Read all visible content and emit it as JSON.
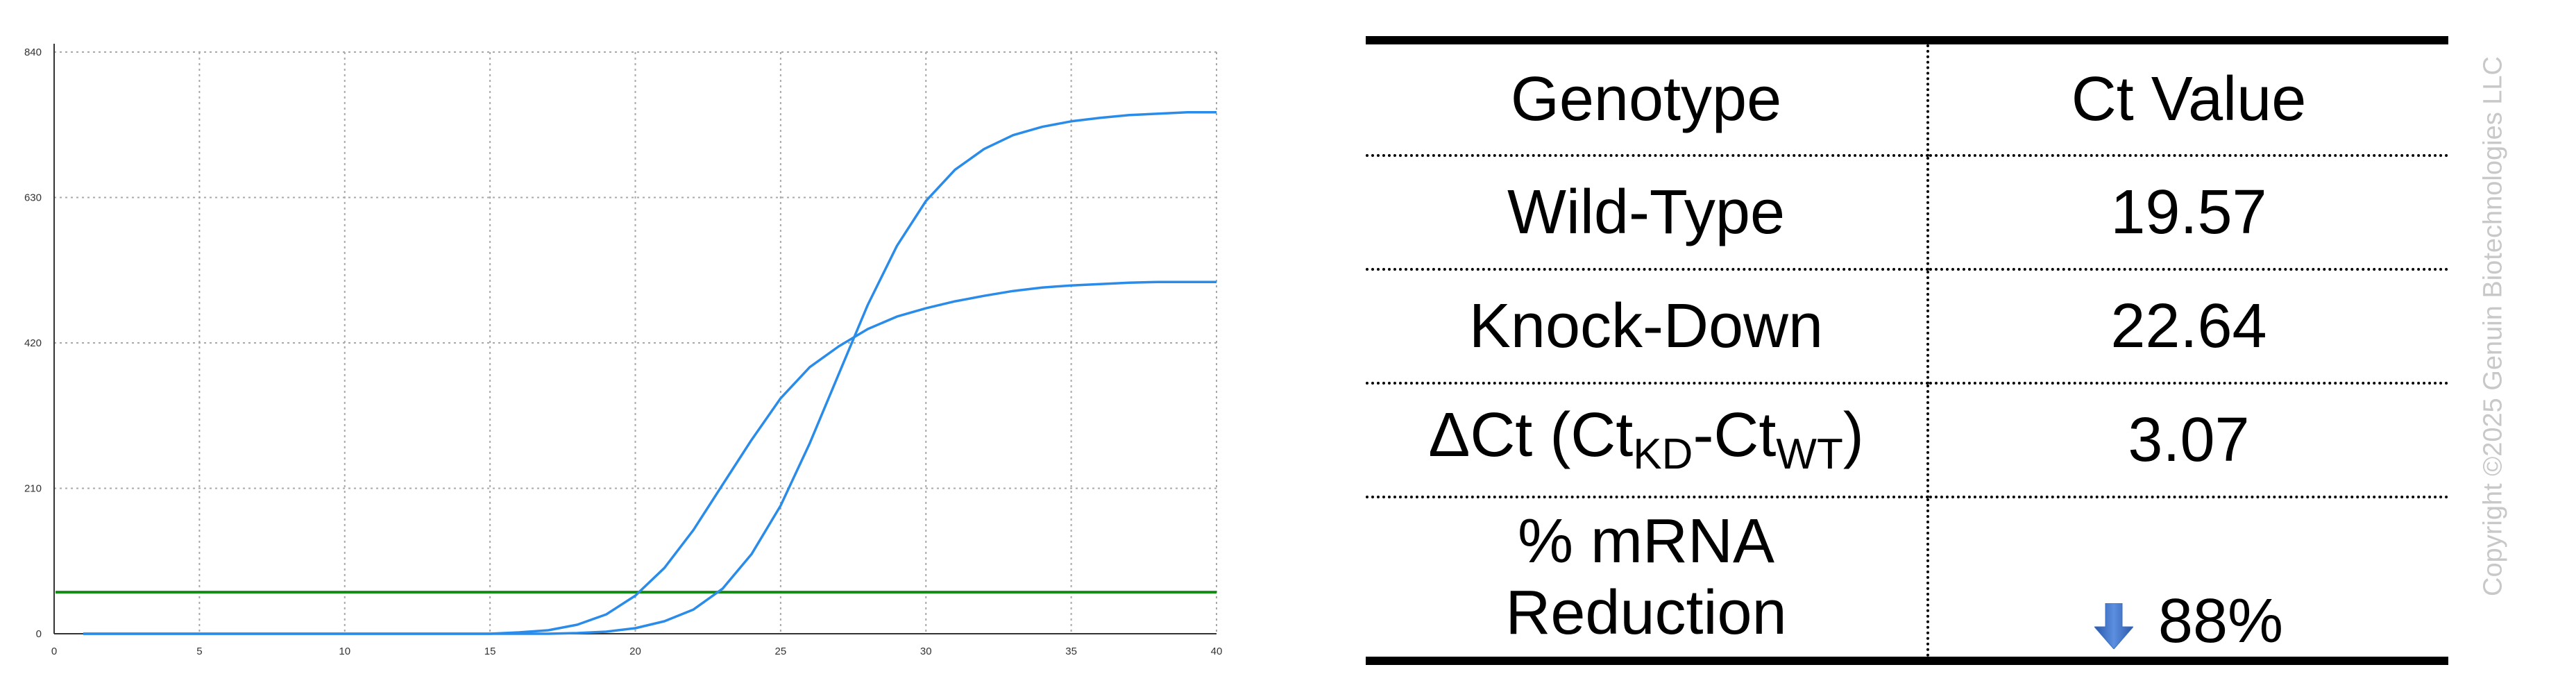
{
  "chart_data": {
    "type": "line",
    "title": "",
    "xlabel": "",
    "ylabel": "",
    "xlim": [
      0,
      40
    ],
    "ylim": [
      0,
      840
    ],
    "x_ticks": [
      "0",
      "5",
      "10",
      "15",
      "20",
      "25",
      "30",
      "35",
      "40"
    ],
    "y_ticks": [
      "0",
      "210",
      "420",
      "630",
      "840"
    ],
    "grid": true,
    "threshold": 60,
    "series": [
      {
        "color": "#2a8ce8",
        "x": [
          1,
          15,
          16,
          17,
          18,
          19,
          20,
          21,
          22,
          23,
          24,
          25,
          26,
          27,
          28,
          29,
          30,
          31,
          32,
          33,
          34,
          35,
          36,
          37,
          38,
          39,
          40
        ],
        "y": [
          0,
          0,
          2,
          5,
          13,
          28,
          55,
          95,
          150,
          215,
          280,
          340,
          385,
          415,
          440,
          458,
          470,
          480,
          488,
          495,
          500,
          503,
          505,
          507,
          508,
          508,
          508
        ]
      },
      {
        "color": "#2a8ce8",
        "x": [
          1,
          17,
          18,
          19,
          20,
          21,
          22,
          23,
          24,
          25,
          26,
          27,
          28,
          29,
          30,
          31,
          32,
          33,
          34,
          35,
          36,
          37,
          38,
          39,
          40
        ],
        "y": [
          0,
          0,
          1,
          3,
          8,
          18,
          35,
          65,
          115,
          185,
          275,
          375,
          475,
          560,
          625,
          670,
          700,
          720,
          732,
          740,
          745,
          749,
          751,
          753,
          753
        ]
      }
    ]
  },
  "table": {
    "header": {
      "genotype": "Genotype",
      "ct": "Ct Value"
    },
    "wild_type": {
      "label": "Wild-Type",
      "value": "19.57"
    },
    "knock_down": {
      "label": "Knock-Down",
      "value": "22.64"
    },
    "delta": {
      "delta_sym": "Δ",
      "prefix": "Ct (Ct",
      "sub1": "KD",
      "mid": "-Ct",
      "sub2": "WT",
      "suffix": ")",
      "value": "3.07"
    },
    "reduction": {
      "line1": "% mRNA",
      "line2": "Reduction",
      "value": "88%",
      "arrow_icon": "down-arrow-icon",
      "arrow_color": "#3a6fc4"
    }
  },
  "watermark": "Copyright ©2025 Genuin Biotechnologies LLC"
}
